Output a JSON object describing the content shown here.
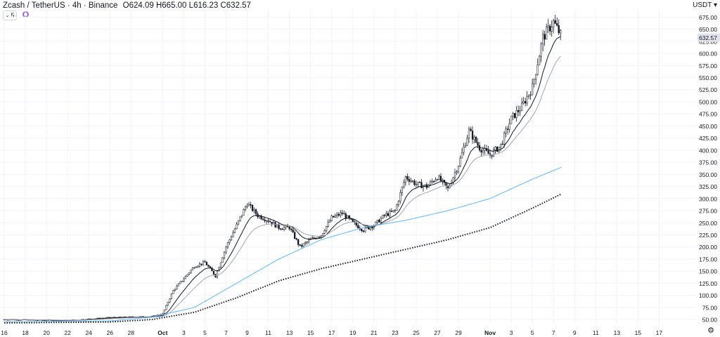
{
  "header": {
    "symbol": "Zcash / TetherUS · 4h · Binance",
    "open_key": "O",
    "open": "624.09",
    "high_key": "H",
    "high": "665.00",
    "low_key": "L",
    "low": "616.23",
    "close_key": "C",
    "close": "632.57"
  },
  "interval_button": {
    "label": "5",
    "icon": "chevron-down-icon"
  },
  "indicator_icon": "indicator-circle-icon",
  "currency": "USDT ▾",
  "settings_icon": "gear-icon",
  "price_tag": "632.57",
  "colors": {
    "ema_fast": "#131722",
    "ema_slow": "#a3a6af",
    "ma_blue": "#64b5f6",
    "ma_dotted": "#131722",
    "grid": "#f0f3fa",
    "price_tag": "#e0e3eb"
  },
  "chart_data": {
    "type": "line",
    "subtype": "candlestick",
    "ylim": [
      40,
      690
    ],
    "y_ticks": [
      50,
      75,
      100,
      125,
      150,
      175,
      200,
      225,
      250,
      275,
      300,
      325,
      350,
      375,
      400,
      425,
      450,
      475,
      500,
      525,
      550,
      575,
      600,
      625,
      650,
      675
    ],
    "x_ticks": [
      "16",
      "18",
      "20",
      "22",
      "24",
      "26",
      "28",
      "Oct",
      "3",
      "5",
      "7",
      "9",
      "11",
      "13",
      "15",
      "17",
      "19",
      "21",
      "23",
      "25",
      "27",
      "29",
      "Nov",
      "3",
      "5",
      "7",
      "9",
      "11",
      "13",
      "15",
      "17"
    ],
    "x_tick_day_index": [
      0,
      2,
      4,
      6,
      8,
      10,
      12,
      15,
      17,
      19,
      21,
      23,
      25,
      27,
      29,
      31,
      33,
      35,
      37,
      39,
      41,
      43,
      46,
      48,
      50,
      52,
      54,
      56,
      58,
      60,
      62
    ],
    "x_day_range": [
      -0.4,
      65.5
    ],
    "price_samples_day": [
      0,
      6,
      10,
      14,
      15,
      16,
      17,
      18,
      19,
      20,
      21,
      22,
      23,
      24,
      25,
      26,
      27,
      28,
      29,
      30,
      31,
      32,
      33,
      34,
      35,
      36,
      37,
      38,
      39,
      40,
      41,
      42,
      43,
      44,
      45,
      46,
      47,
      48,
      49,
      50,
      51,
      52,
      52.8
    ],
    "price_samples_close": [
      50,
      48,
      54,
      56,
      62,
      110,
      135,
      160,
      168,
      140,
      200,
      245,
      290,
      265,
      255,
      240,
      240,
      200,
      215,
      225,
      260,
      270,
      250,
      235,
      245,
      265,
      275,
      345,
      330,
      325,
      345,
      320,
      370,
      440,
      405,
      390,
      410,
      465,
      490,
      530,
      632.57,
      665,
      632.57
    ],
    "series": [
      {
        "name": "",
        "style": "ema-fast"
      },
      {
        "name": "",
        "style": "ema-slow"
      },
      {
        "name": "",
        "style": "ma-blue",
        "values_day": [
          0,
          10,
          14,
          18,
          22,
          26,
          30,
          34,
          38,
          42,
          46,
          50,
          52.8
        ],
        "values": [
          45,
          47,
          55,
          75,
          125,
          175,
          215,
          240,
          255,
          275,
          300,
          340,
          365
        ]
      },
      {
        "name": "",
        "style": "ma-dotted",
        "values_day": [
          0,
          10,
          14,
          18,
          22,
          26,
          30,
          34,
          38,
          42,
          46,
          50,
          52.8
        ],
        "values": [
          43,
          45,
          50,
          65,
          95,
          130,
          155,
          175,
          195,
          215,
          240,
          280,
          310
        ]
      }
    ]
  }
}
